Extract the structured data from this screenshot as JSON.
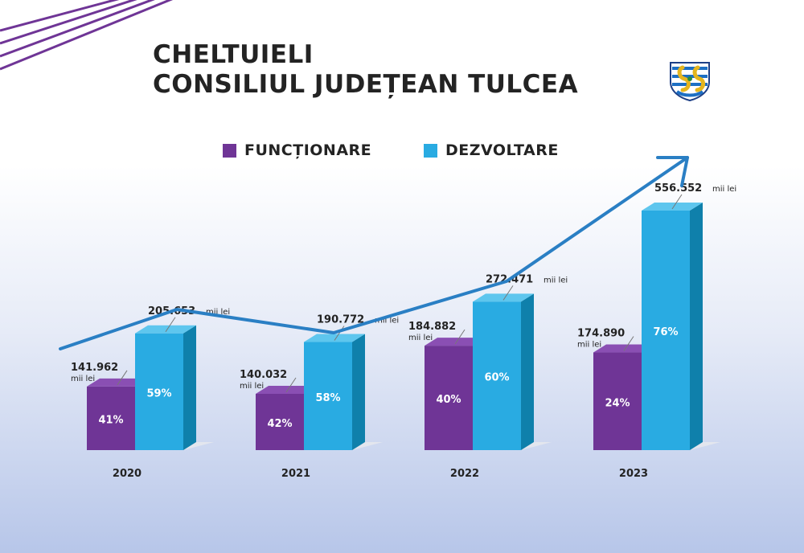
{
  "title": "CHELTUIELI",
  "subtitle": "CONSILIUL JUDEȚEAN TULCEA",
  "logo_icon": "tulcea-county-coat-of-arms-icon",
  "colors": {
    "functionare": "#6f3596",
    "functionare_side": "#4f2370",
    "functionare_top": "#8a4fb3",
    "dezvoltare": "#29abe2",
    "dezvoltare_side": "#0f80ab",
    "dezvoltare_top": "#5ec6ee",
    "trend": "#2a7fc4",
    "text": "#232323"
  },
  "chart_data": {
    "type": "bar",
    "categories": [
      "2020",
      "2021",
      "2022",
      "2023"
    ],
    "unit": "mii lei",
    "series": [
      {
        "name": "FUNCȚIONARE",
        "values": [
          141.962,
          140.032,
          184.882,
          174.89
        ],
        "value_labels": [
          "141.962",
          "140.032",
          "184.882",
          "174.890"
        ],
        "percent_labels": [
          "41%",
          "42%",
          "40%",
          "24%"
        ]
      },
      {
        "name": "DEZVOLTARE",
        "values": [
          205.653,
          190.772,
          272.471,
          556.552
        ],
        "value_labels": [
          "205.653",
          "190.772",
          "272.471",
          "556.552"
        ],
        "percent_labels": [
          "59%",
          "58%",
          "60%",
          "76%"
        ]
      }
    ],
    "trend_arrow": true,
    "legend_position": "top-center",
    "grid": false
  }
}
